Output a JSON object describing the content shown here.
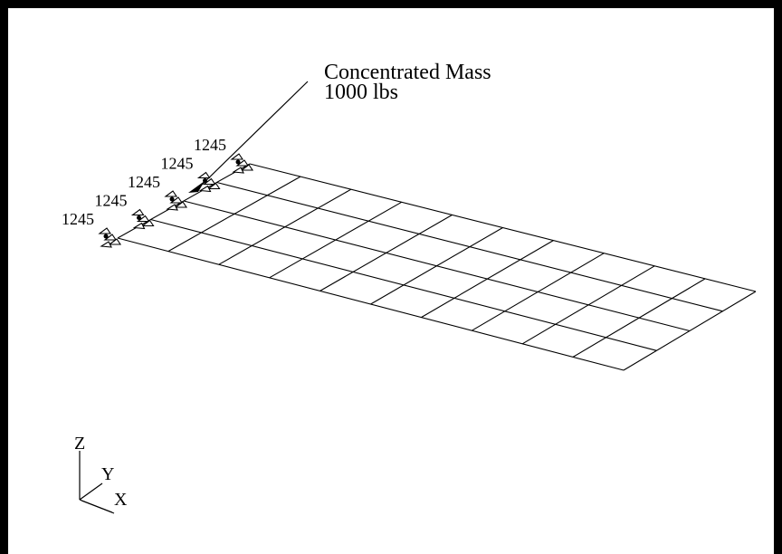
{
  "annotation": {
    "line1": "Concentrated Mass",
    "line2": "1000 lbs"
  },
  "constraint_labels": [
    "1245",
    "1245",
    "1245",
    "1245",
    "1245"
  ],
  "mesh": {
    "columns": 10,
    "rows": 4
  },
  "triad": {
    "z": "Z",
    "y": "Y",
    "x": "X"
  },
  "colors": {
    "line": "#000000",
    "background": "#ffffff",
    "frame": "#000000"
  },
  "icons": {
    "constraint": "constraint-icon",
    "mass": "mass-icon"
  }
}
